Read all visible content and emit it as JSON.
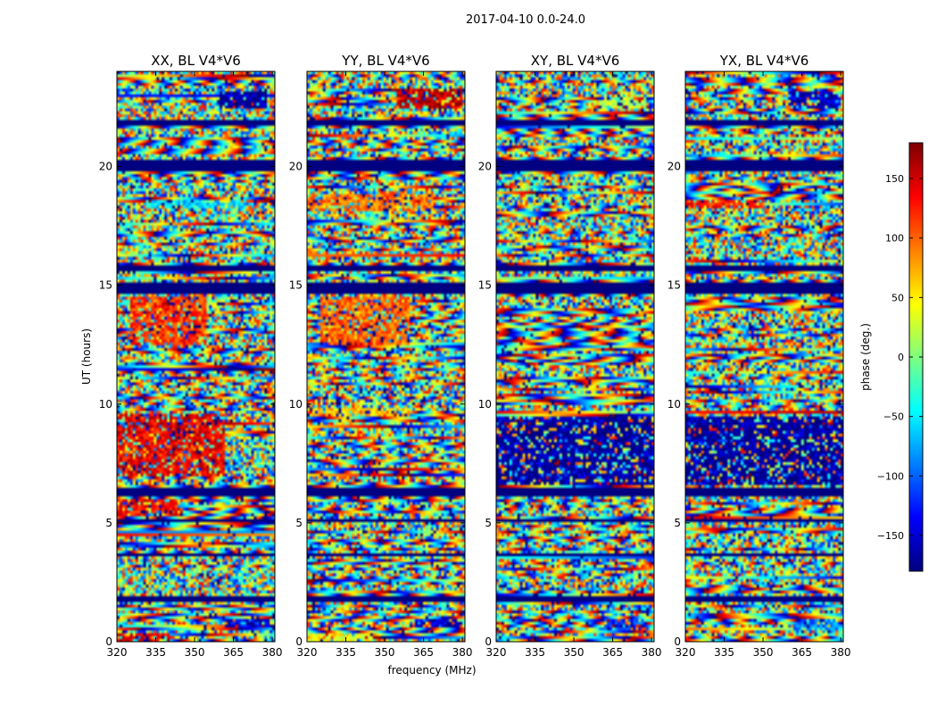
{
  "figure_title": "2017-04-10 0.0-24.0",
  "chart_data": [
    {
      "type": "heatmap",
      "title": "XX, BL V4*V6",
      "xlabel": "",
      "ylabel": "UT (hours)",
      "xlim": [
        320,
        381
      ],
      "ylim": [
        0,
        24
      ],
      "xticks": [
        320,
        335,
        350,
        365,
        380
      ],
      "yticks": [
        0,
        5,
        10,
        15,
        20
      ],
      "value_range": [
        -180,
        180
      ],
      "masked_hours": [
        [
          3.55,
          3.75
        ],
        [
          1.7,
          1.9
        ],
        [
          5.05,
          5.2
        ],
        [
          6.1,
          6.5
        ],
        [
          14.7,
          15.1
        ],
        [
          15.55,
          15.85
        ],
        [
          19.85,
          20.25
        ],
        [
          21.75,
          22.0
        ]
      ],
      "hotspots": [
        [
          0.0,
          0.3,
          320,
          340,
          150
        ],
        [
          0.55,
          0.9,
          362,
          379,
          -150
        ],
        [
          5.3,
          6.0,
          320,
          345,
          130
        ],
        [
          7.0,
          9.6,
          320,
          362,
          140
        ],
        [
          12.5,
          14.5,
          325,
          355,
          120
        ],
        [
          18.3,
          18.6,
          330,
          370,
          -60
        ],
        [
          22.4,
          23.2,
          360,
          378,
          -170
        ]
      ]
    },
    {
      "type": "heatmap",
      "title": "YY, BL V4*V6",
      "xlabel": "frequency (MHz)",
      "ylabel": "",
      "xlim": [
        320,
        381
      ],
      "ylim": [
        0,
        24
      ],
      "xticks": [
        320,
        335,
        350,
        365,
        380
      ],
      "yticks": [
        0,
        5,
        10,
        15,
        20
      ],
      "value_range": [
        -180,
        180
      ],
      "masked_hours": [
        [
          3.55,
          3.75
        ],
        [
          1.7,
          1.9
        ],
        [
          5.05,
          5.2
        ],
        [
          6.1,
          6.5
        ],
        [
          14.7,
          15.1
        ],
        [
          15.55,
          15.85
        ],
        [
          19.85,
          20.25
        ],
        [
          21.75,
          22.0
        ]
      ],
      "hotspots": [
        [
          0.0,
          0.3,
          320,
          345,
          40
        ],
        [
          0.55,
          0.9,
          362,
          379,
          -150
        ],
        [
          9.5,
          9.8,
          320,
          360,
          60
        ],
        [
          12.5,
          14.5,
          325,
          360,
          100
        ],
        [
          18.1,
          18.8,
          320,
          370,
          90
        ],
        [
          22.4,
          23.3,
          355,
          380,
          160
        ]
      ]
    },
    {
      "type": "heatmap",
      "title": "XY, BL V4*V6",
      "xlabel": "",
      "ylabel": "",
      "xlim": [
        320,
        381
      ],
      "ylim": [
        0,
        24
      ],
      "xticks": [
        320,
        335,
        350,
        365,
        380
      ],
      "yticks": [
        0,
        5,
        10,
        15,
        20
      ],
      "value_range": [
        -180,
        180
      ],
      "masked_hours": [
        [
          3.55,
          3.75
        ],
        [
          1.7,
          1.9
        ],
        [
          5.05,
          5.2
        ],
        [
          6.1,
          6.5
        ],
        [
          14.7,
          15.1
        ],
        [
          15.55,
          15.85
        ],
        [
          19.85,
          20.25
        ],
        [
          21.75,
          22.0
        ]
      ],
      "hotspots": [
        [
          0.45,
          0.9,
          362,
          379,
          -120
        ],
        [
          6.6,
          9.5,
          320,
          381,
          -170
        ],
        [
          22.5,
          23.0,
          360,
          378,
          20
        ]
      ]
    },
    {
      "type": "heatmap",
      "title": "YX, BL V4*V6",
      "xlabel": "",
      "ylabel": "",
      "xlim": [
        320,
        381
      ],
      "ylim": [
        0,
        24
      ],
      "xticks": [
        320,
        335,
        350,
        365,
        380
      ],
      "yticks": [
        0,
        5,
        10,
        15,
        20
      ],
      "value_range": [
        -180,
        180
      ],
      "masked_hours": [
        [
          3.55,
          3.75
        ],
        [
          1.7,
          1.9
        ],
        [
          5.05,
          5.2
        ],
        [
          6.1,
          6.5
        ],
        [
          14.7,
          15.1
        ],
        [
          15.55,
          15.85
        ],
        [
          19.85,
          20.25
        ],
        [
          21.75,
          22.0
        ]
      ],
      "hotspots": [
        [
          0.45,
          0.9,
          362,
          379,
          -90
        ],
        [
          6.6,
          9.5,
          320,
          381,
          -170
        ],
        [
          18.2,
          18.6,
          320,
          350,
          120
        ],
        [
          22.4,
          23.2,
          360,
          380,
          -160
        ]
      ]
    }
  ],
  "colorbar": {
    "label": "phase (deg.)",
    "ticks": [
      150,
      100,
      50,
      0,
      -50,
      -100,
      -150
    ],
    "tick_labels": [
      "150",
      "100",
      "50",
      "0",
      "−50",
      "−100",
      "−150"
    ],
    "range": [
      -180,
      180
    ],
    "colormap": "jet"
  }
}
